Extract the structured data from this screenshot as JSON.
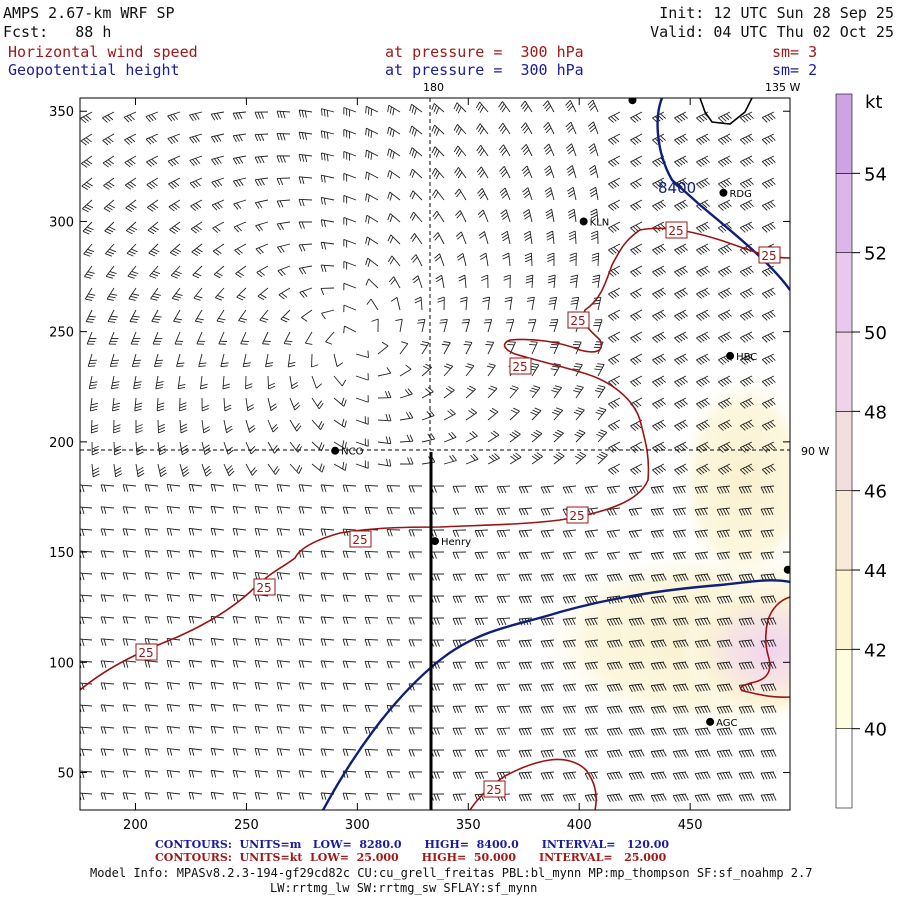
{
  "header": {
    "model_title": "AMPS 2.67-km WRF SP",
    "forecast": "Fcst:   88 h",
    "init": "Init: 12 UTC Sun 28 Sep 25",
    "valid": "Valid: 04 UTC Thu 02 Oct 25",
    "field1_name": "Horizontal wind speed",
    "field1_level": "at pressure =  300 hPa",
    "field1_sm": "sm= 3",
    "field2_name": "Geopotential height",
    "field2_level": "at pressure =  300 hPa",
    "field2_sm": "sm= 2"
  },
  "axes": {
    "x_ticks": [
      200,
      250,
      300,
      350,
      400,
      450
    ],
    "y_ticks": [
      50,
      100,
      150,
      200,
      250,
      300,
      350
    ],
    "xlim": [
      175,
      495
    ],
    "ylim": [
      33,
      356
    ]
  },
  "map_labels": {
    "meridian_180": "180",
    "meridian_135w": "135 W",
    "meridian_90w": "90 W"
  },
  "stations": [
    {
      "name": "RDG",
      "x": 465,
      "y": 313
    },
    {
      "name": "KLN",
      "x": 402,
      "y": 300
    },
    {
      "name": "HBC",
      "x": 468,
      "y": 239
    },
    {
      "name": "NCO",
      "x": 290,
      "y": 196
    },
    {
      "name": "Henry",
      "x": 335,
      "y": 155
    },
    {
      "name": "AGC",
      "x": 459,
      "y": 73
    },
    {
      "name": "",
      "x": 424,
      "y": 355
    },
    {
      "name": "",
      "x": 494,
      "y": 142
    }
  ],
  "height_contour_label": "8400",
  "speed_contour_labels": [
    "25",
    "25",
    "25",
    "25",
    "25",
    "25",
    "25",
    "25",
    "25"
  ],
  "colorbar": {
    "unit": "kt",
    "values": [
      40,
      42,
      44,
      46,
      48,
      50,
      52,
      54
    ],
    "colors": [
      "#ffffff",
      "#fdfde0",
      "#fbf5d2",
      "#f7ead8",
      "#f2dede",
      "#efd3e8",
      "#e8c8ee",
      "#dcb6ea",
      "#cfa2e4"
    ]
  },
  "footer": {
    "height_contours": "CONTOURS:  UNITS=m   LOW=  8280.0      HIGH=  8400.0      INTERVAL=   120.00",
    "speed_contours": "CONTOURS:  UNITS=kt  LOW=  25.000      HIGH=  50.000      INTERVAL=   25.000",
    "model_info_1": "Model Info: MPASv8.2.3-194-gf29cd82c CU:cu_grell_freitas PBL:bl_mynn MP:mp_thompson SF:sf_noahmp 2.7",
    "model_info_2": "LW:rrtmg_lw SW:rrtmg_sw SFLAY:sf_mynn"
  },
  "colors": {
    "height_contour": "#10207a",
    "speed_contour": "#9a1414",
    "map_line": "#000000"
  }
}
